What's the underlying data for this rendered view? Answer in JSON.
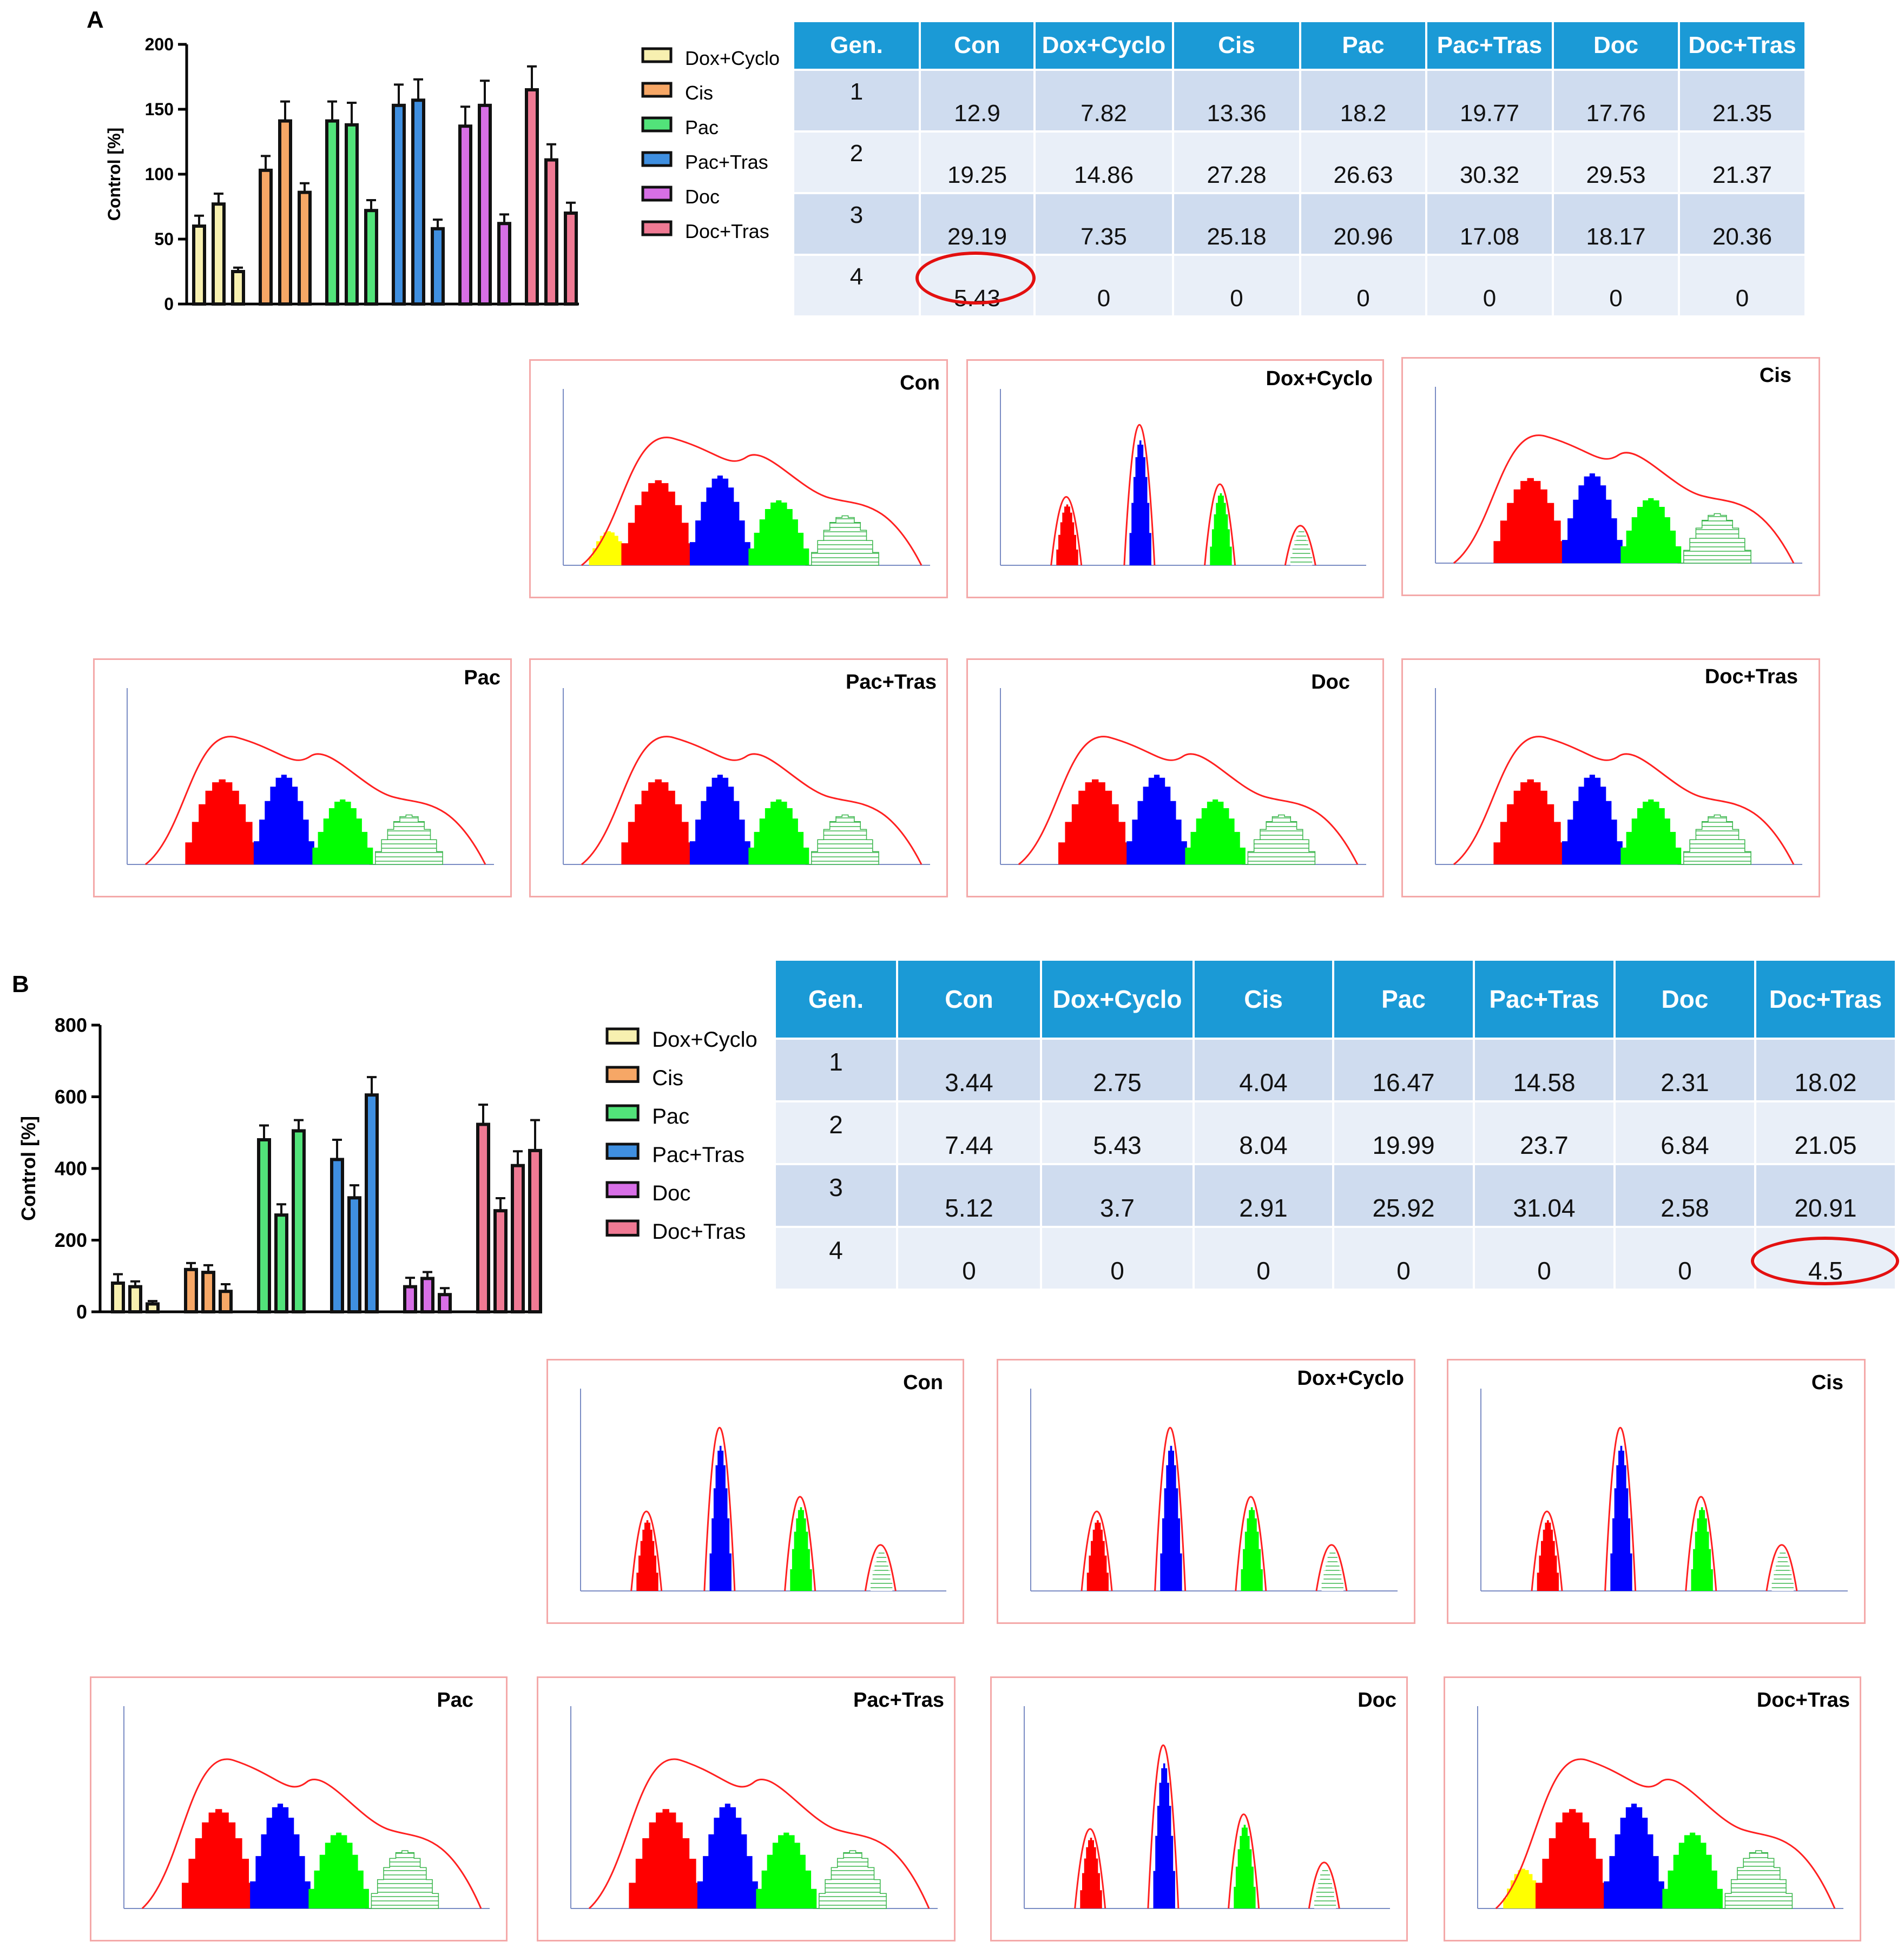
{
  "panels": [
    {
      "letter": "A",
      "bar_chart": {
        "type": "bar",
        "ylabel": "Control [%]",
        "ylim": [
          0,
          200
        ],
        "yticks": [
          0,
          50,
          100,
          150,
          200
        ],
        "legend": [
          "Dox+Cyclo",
          "Cis",
          "Pac",
          "Pac+Tras",
          "Doc",
          "Doc+Tras"
        ],
        "legend_colors": [
          "#f7f0b0",
          "#f6a766",
          "#52e37a",
          "#3f8fe0",
          "#d76fe6",
          "#f07a94"
        ],
        "groups": [
          {
            "values": [
              60,
              77,
              25
            ],
            "errors": [
              8,
              8,
              3
            ]
          },
          {
            "values": [
              103,
              141,
              86
            ],
            "errors": [
              11,
              15,
              7
            ]
          },
          {
            "values": [
              141,
              138,
              72
            ],
            "errors": [
              15,
              17,
              8
            ]
          },
          {
            "values": [
              153,
              157,
              58
            ],
            "errors": [
              16,
              16,
              7
            ]
          },
          {
            "values": [
              137,
              153,
              62
            ],
            "errors": [
              15,
              19,
              7
            ]
          },
          {
            "values": [
              165,
              111,
              70
            ],
            "errors": [
              18,
              12,
              8
            ]
          }
        ]
      },
      "table": {
        "headers": [
          "Gen.",
          "Con",
          "Dox+Cyclo",
          "Cis",
          "Pac",
          "Pac+Tras",
          "Doc",
          "Doc+Tras"
        ],
        "rows": [
          [
            "1",
            "12.9",
            "7.82",
            "13.36",
            "18.2",
            "19.77",
            "17.76",
            "21.35"
          ],
          [
            "2",
            "19.25",
            "14.86",
            "27.28",
            "26.63",
            "30.32",
            "29.53",
            "21.37"
          ],
          [
            "3",
            "29.19",
            "7.35",
            "25.18",
            "20.96",
            "17.08",
            "18.17",
            "20.36"
          ],
          [
            "4",
            "5.43",
            "0",
            "0",
            "0",
            "0",
            "0",
            "0"
          ]
        ],
        "highlight": {
          "row": 3,
          "col": 1
        }
      },
      "histograms": [
        {
          "name": "Con",
          "shape": "broad",
          "yellow": true
        },
        {
          "name": "Dox+Cyclo",
          "shape": "peaks"
        },
        {
          "name": "Cis",
          "shape": "broad"
        },
        {
          "name": "Pac",
          "shape": "broad"
        },
        {
          "name": "Pac+Tras",
          "shape": "broad"
        },
        {
          "name": "Doc",
          "shape": "broad"
        },
        {
          "name": "Doc+Tras",
          "shape": "broad"
        }
      ]
    },
    {
      "letter": "B",
      "bar_chart": {
        "type": "bar",
        "ylabel": "Control [%]",
        "ylim": [
          0,
          800
        ],
        "yticks": [
          0,
          200,
          400,
          600,
          800
        ],
        "legend": [
          "Dox+Cyclo",
          "Cis",
          "Pac",
          "Pac+Tras",
          "Doc",
          "Doc+Tras"
        ],
        "legend_colors": [
          "#f7f0b0",
          "#f6a766",
          "#52e37a",
          "#3f8fe0",
          "#d76fe6",
          "#f07a94"
        ],
        "groups": [
          {
            "values": [
              80,
              70,
              22
            ],
            "errors": [
              25,
              15,
              8
            ]
          },
          {
            "values": [
              118,
              110,
              57
            ],
            "errors": [
              18,
              20,
              20
            ]
          },
          {
            "values": [
              480,
              270,
              505
            ],
            "errors": [
              40,
              30,
              30
            ]
          },
          {
            "values": [
              425,
              318,
              605
            ],
            "errors": [
              55,
              35,
              50
            ]
          },
          {
            "values": [
              70,
              93,
              48
            ],
            "errors": [
              25,
              18,
              18
            ]
          },
          {
            "values": [
              523,
              282,
              408,
              450
            ],
            "errors": [
              55,
              35,
              40,
              85
            ]
          }
        ]
      },
      "table": {
        "headers": [
          "Gen.",
          "Con",
          "Dox+Cyclo",
          "Cis",
          "Pac",
          "Pac+Tras",
          "Doc",
          "Doc+Tras"
        ],
        "rows": [
          [
            "1",
            "3.44",
            "2.75",
            "4.04",
            "16.47",
            "14.58",
            "2.31",
            "18.02"
          ],
          [
            "2",
            "7.44",
            "5.43",
            "8.04",
            "19.99",
            "23.7",
            "6.84",
            "21.05"
          ],
          [
            "3",
            "5.12",
            "3.7",
            "2.91",
            "25.92",
            "31.04",
            "2.58",
            "20.91"
          ],
          [
            "4",
            "0",
            "0",
            "0",
            "0",
            "0",
            "0",
            "4.5"
          ]
        ],
        "highlight": {
          "row": 3,
          "col": 7
        }
      },
      "histograms": [
        {
          "name": "Con",
          "shape": "peaks"
        },
        {
          "name": "Dox+Cyclo",
          "shape": "peaks"
        },
        {
          "name": "Cis",
          "shape": "peaks"
        },
        {
          "name": "Pac",
          "shape": "broad"
        },
        {
          "name": "Pac+Tras",
          "shape": "broad"
        },
        {
          "name": "Doc",
          "shape": "peaks"
        },
        {
          "name": "Doc+Tras",
          "shape": "broad",
          "yellow": true
        }
      ]
    }
  ],
  "chart_data": [
    {
      "type": "bar",
      "title": "A",
      "ylabel": "Control [%]",
      "ylim": [
        0,
        200
      ],
      "legend": [
        "Dox+Cyclo",
        "Cis",
        "Pac",
        "Pac+Tras",
        "Doc",
        "Doc+Tras"
      ],
      "categories": [
        "Dox+Cyclo",
        "Cis",
        "Pac",
        "Pac+Tras",
        "Doc",
        "Doc+Tras"
      ],
      "series_values": [
        [
          60,
          77,
          25
        ],
        [
          103,
          141,
          86
        ],
        [
          141,
          138,
          72
        ],
        [
          153,
          157,
          58
        ],
        [
          137,
          153,
          62
        ],
        [
          165,
          111,
          70
        ]
      ]
    },
    {
      "type": "bar",
      "title": "B",
      "ylabel": "Control [%]",
      "ylim": [
        0,
        800
      ],
      "legend": [
        "Dox+Cyclo",
        "Cis",
        "Pac",
        "Pac+Tras",
        "Doc",
        "Doc+Tras"
      ],
      "categories": [
        "Dox+Cyclo",
        "Cis",
        "Pac",
        "Pac+Tras",
        "Doc",
        "Doc+Tras"
      ],
      "series_values": [
        [
          80,
          70,
          22
        ],
        [
          118,
          110,
          57
        ],
        [
          480,
          270,
          505
        ],
        [
          425,
          318,
          605
        ],
        [
          70,
          93,
          48
        ],
        [
          523,
          282,
          408,
          450
        ]
      ]
    },
    {
      "type": "table",
      "title": "A generations",
      "headers": [
        "Gen.",
        "Con",
        "Dox+Cyclo",
        "Cis",
        "Pac",
        "Pac+Tras",
        "Doc",
        "Doc+Tras"
      ],
      "rows": [
        [
          "1",
          "12.9",
          "7.82",
          "13.36",
          "18.2",
          "19.77",
          "17.76",
          "21.35"
        ],
        [
          "2",
          "19.25",
          "14.86",
          "27.28",
          "26.63",
          "30.32",
          "29.53",
          "21.37"
        ],
        [
          "3",
          "29.19",
          "7.35",
          "25.18",
          "20.96",
          "17.08",
          "18.17",
          "20.36"
        ],
        [
          "4",
          "5.43",
          "0",
          "0",
          "0",
          "0",
          "0",
          "0"
        ]
      ]
    },
    {
      "type": "table",
      "title": "B generations",
      "headers": [
        "Gen.",
        "Con",
        "Dox+Cyclo",
        "Cis",
        "Pac",
        "Pac+Tras",
        "Doc",
        "Doc+Tras"
      ],
      "rows": [
        [
          "1",
          "3.44",
          "2.75",
          "4.04",
          "16.47",
          "14.58",
          "2.31",
          "18.02"
        ],
        [
          "2",
          "7.44",
          "5.43",
          "8.04",
          "19.99",
          "23.7",
          "6.84",
          "21.05"
        ],
        [
          "3",
          "5.12",
          "3.7",
          "2.91",
          "25.92",
          "31.04",
          "2.58",
          "20.91"
        ],
        [
          "4",
          "0",
          "0",
          "0",
          "0",
          "0",
          "0",
          "4.5"
        ]
      ]
    }
  ]
}
